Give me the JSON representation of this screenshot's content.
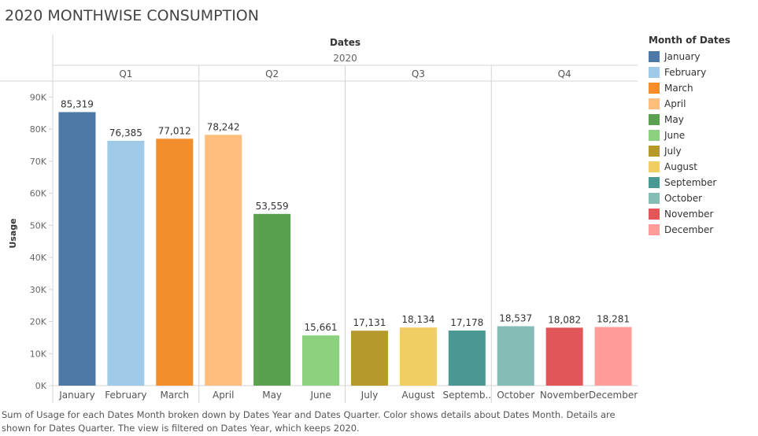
{
  "page": {
    "title": "2020 MONTHWISE CONSUMPTION",
    "caption": "Sum of Usage for each Dates Month broken down by Dates Year and Dates Quarter.  Color shows details about Dates Month.  Details are shown for Dates Quarter. The view is filtered on Dates Year, which keeps 2020."
  },
  "chart_data": {
    "type": "bar",
    "title": "2020 MONTHWISE CONSUMPTION",
    "header_title": "Dates",
    "year_label": "2020",
    "ylabel": "Usage",
    "ylim": [
      0,
      95000
    ],
    "yticks": [
      {
        "value": 0,
        "label": "0K"
      },
      {
        "value": 10000,
        "label": "10K"
      },
      {
        "value": 20000,
        "label": "20K"
      },
      {
        "value": 30000,
        "label": "30K"
      },
      {
        "value": 40000,
        "label": "40K"
      },
      {
        "value": 50000,
        "label": "50K"
      },
      {
        "value": 60000,
        "label": "60K"
      },
      {
        "value": 70000,
        "label": "70K"
      },
      {
        "value": 80000,
        "label": "80K"
      },
      {
        "value": 90000,
        "label": "90K"
      }
    ],
    "grid": false,
    "quarters": [
      {
        "label": "Q1",
        "categories": [
          "January",
          "February",
          "March"
        ]
      },
      {
        "label": "Q2",
        "categories": [
          "April",
          "May",
          "June"
        ]
      },
      {
        "label": "Q3",
        "categories": [
          "July",
          "August",
          "Septemb.."
        ]
      },
      {
        "label": "Q4",
        "categories": [
          "October",
          "November",
          "December"
        ]
      }
    ],
    "categories": [
      "January",
      "February",
      "March",
      "April",
      "May",
      "June",
      "July",
      "August",
      "Septemb..",
      "October",
      "November",
      "December"
    ],
    "values": [
      85319,
      76385,
      77012,
      78242,
      53559,
      15661,
      17131,
      18134,
      17178,
      18537,
      18082,
      18281
    ],
    "data_labels": [
      "85,319",
      "76,385",
      "77,012",
      "78,242",
      "53,559",
      "15,661",
      "17,131",
      "18,134",
      "17,178",
      "18,537",
      "18,082",
      "18,281"
    ],
    "colors": [
      "#4e79a7",
      "#a0cbe8",
      "#f28e2b",
      "#ffbe7d",
      "#59a14f",
      "#8cd17d",
      "#b6992d",
      "#f1ce63",
      "#499894",
      "#86bcb6",
      "#e15759",
      "#ff9d9a"
    ],
    "legend": {
      "title": "Month of Dates",
      "placement": "right",
      "items": [
        "January",
        "February",
        "March",
        "April",
        "May",
        "June",
        "July",
        "August",
        "September",
        "October",
        "November",
        "December"
      ]
    }
  }
}
